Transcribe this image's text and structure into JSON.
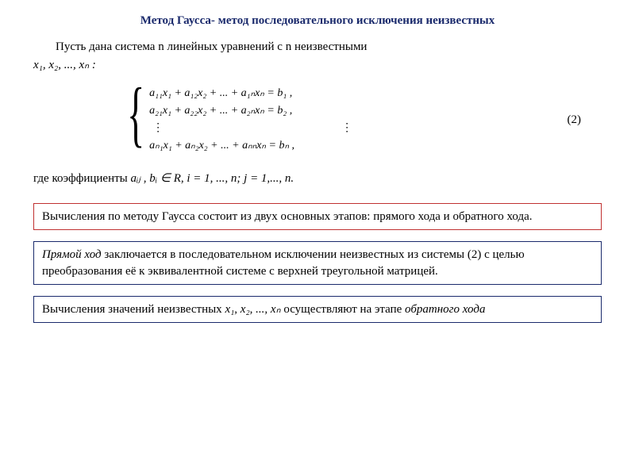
{
  "title": {
    "text": "Метод Гаусса- метод последовательного исключения неизвестных",
    "color": "#1a2a6c",
    "fontsize": 15
  },
  "intro_line1": "Пусть   дана   система     n   линейных   уравнений   с   n     неизвестными",
  "intro_vars": "x₁,  x₂, ...,  xₙ :",
  "system": {
    "eq1": "a₁₁x₁ + a₁₂x₂ + ... + a₁ₙxₙ = b₁ ,",
    "eq2": "a₂₁x₁ + a₂₂x₂ + ... + a₂ₙxₙ = b₂ ,",
    "dots_left": "⋮",
    "dots_right": "⋮",
    "eqn": "aₙ₁x₁ + aₙ₂x₂ + ... + aₙₙxₙ = bₙ ,",
    "number": "(2)"
  },
  "coeff_prefix": "где коэффициенты  ",
  "coeff_math": "aᵢⱼ ,  bᵢ ∈ R,   i = 1, ..., n;     j = 1,..., n.",
  "box1": {
    "text": "Вычисления по методу Гаусса состоит из двух основных этапов: прямого хода и обратного хода.",
    "border_color": "#c03030"
  },
  "box2": {
    "prefix_italic": "Прямой ход",
    "rest": " заключается в последовательном исключении неизвестных из системы (2) с целью преобразования её к эквивалентной системе с верхней треугольной матрицей.",
    "border_color": "#1a2a6c"
  },
  "box3": {
    "prefix": "Вычисления значений неизвестных ",
    "vars": "x₁,  x₂, ...,  xₙ",
    "mid": " осуществляют на этапе ",
    "suffix_italic": "обратного хода",
    "border_color": "#1a2a6c"
  },
  "colors": {
    "text": "#000000",
    "background": "#ffffff"
  }
}
